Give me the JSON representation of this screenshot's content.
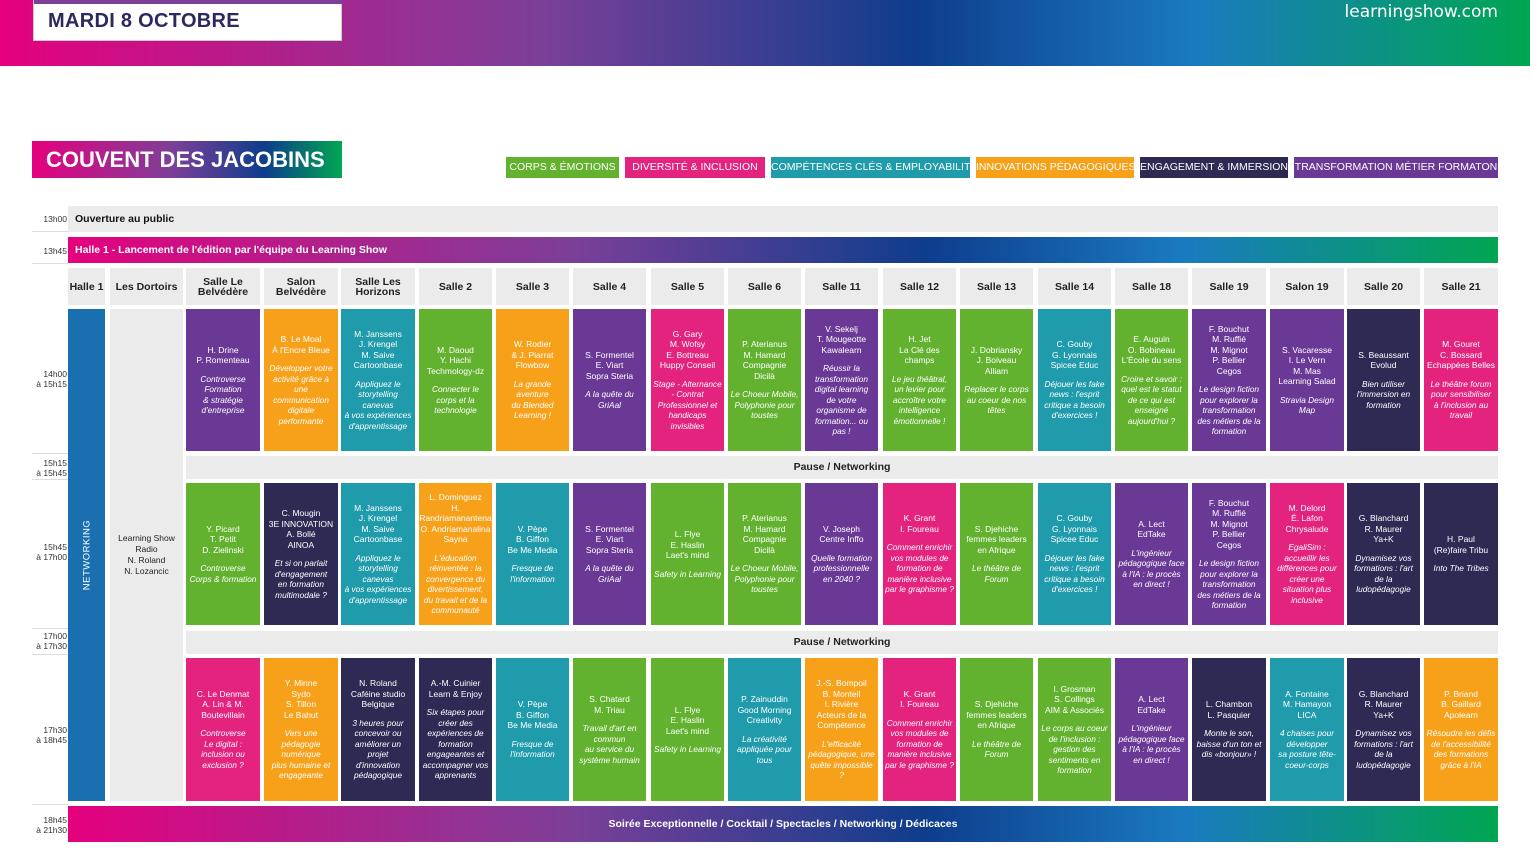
{
  "header": {
    "date": "MARDI 8 OCTOBRE",
    "site": "learningshow.com"
  },
  "venue": "COUVENT DES JACOBINS",
  "colors": {
    "corps": "#63b22f",
    "diversite": "#e4237f",
    "competences": "#1f9bab",
    "innovations": "#f7a11a",
    "engagement": "#2e2a54",
    "transformation": "#6a3996"
  },
  "legend": [
    {
      "label": "CORPS & ÉMOTIONS",
      "color": "#63b22f"
    },
    {
      "label": "DIVERSITÉ & INCLUSION",
      "color": "#e4237f"
    },
    {
      "label": "COMPÉTENCES CLÉS & EMPLOYABILITÉ",
      "color": "#1f9bab"
    },
    {
      "label": "INNOVATIONS PÉDAGOGIQUES",
      "color": "#f7a11a"
    },
    {
      "label": "ENGAGEMENT & IMMERSION",
      "color": "#2e2a54"
    },
    {
      "label": "TRANSFORMATION MÉTIER FORMATON",
      "color": "#6a3996"
    }
  ],
  "times": {
    "t1300": "13h00",
    "t1345": "13h45",
    "slot1": "14h00\nà 15h15",
    "pause1": "15h15\nà 15h45",
    "slot2": "15h45\nà 17h00",
    "pause2": "17h00\nà 17h30",
    "slot3": "17h30\nà 18h45",
    "evening": "18h45\nà 21h30"
  },
  "rows": {
    "opening": "Ouverture au public",
    "launch": "Halle 1 - Lancement de l'édition par l'équipe du Learning Show",
    "pause": "Pause / Networking",
    "evening": "Soirée Exceptionnelle / Cocktail / Spectacles / Networking / Dédicaces"
  },
  "rooms": [
    "Halle 1",
    "Les Dortoirs",
    "Salle Le Belvédère",
    "Salon Belvédère",
    "Salle Les Horizons",
    "Salle 2",
    "Salle 3",
    "Salle 4",
    "Salle 5",
    "Salle 6",
    "Salle 11",
    "Salle 12",
    "Salle 13",
    "Salle 14",
    "Salle 18",
    "Salle 19",
    "Salon 19",
    "Salle 20",
    "Salle 21"
  ],
  "networking": "NETWORKING",
  "dortoirs": "Learning Show\nRadio\nN. Roland\nN. Lozancic",
  "slot1": [
    {
      "sp": "H. Drine\nP. Romenteau",
      "t": "Controverse\nFormation\n& stratégie\nd'entreprise",
      "c": "transformation"
    },
    {
      "sp": "B. Le Moal\nÀ l'Encre Bleue",
      "t": "Développer votre\nactivité grâce à\nune\ncommunication\ndigitale\nperformante",
      "c": "innovations"
    },
    {
      "sp": "M. Janssens\nJ. Krengel\nM. Saive\nCartoonbase",
      "t": "Appliquez le\nstorytelling\ncanevas\nà vos expériences\nd'apprentissage",
      "c": "competences"
    },
    {
      "sp": "M. Daoud\nY. Hachi\nTechmology-dz",
      "t": "Connecter le\ncorps et la\ntechnologie",
      "c": "corps"
    },
    {
      "sp": "W. Rodier\n& J. Piarrat\nFlowbow",
      "t": "La grande\naventure\ndu Blended\nLearning !",
      "c": "innovations"
    },
    {
      "sp": "S. Formentel\nE. Viart\nSopra Steria",
      "t": "A la quête du\nGriAal",
      "c": "transformation"
    },
    {
      "sp": "G. Gary\nM. Wofsy\nE. Bottreau\nHuppy Conseil",
      "t": "Stage - Alternance\n- Contrat\nProfessionnel et\nhandicaps\ninvisibles",
      "c": "diversite"
    },
    {
      "sp": "P. Aterianus\nM. Hamard\nCompagnie\nDicilà",
      "t": "Le Choeur Mobile,\nPolyphonie pour\ntoustes",
      "c": "corps"
    },
    {
      "sp": "V. Sekelj\nT. Mougeotte\nKawalearn",
      "t": "Réussir la\ntransformation\ndigital learning\nde votre\norganisme de\nformation... ou\npas !",
      "c": "transformation"
    },
    {
      "sp": "H. Jet\nLa Clé des\nchamps",
      "t": "Le jeu théâtral,\nun levier pour\naccroître votre\nintelligence\némotionnelle !",
      "c": "corps"
    },
    {
      "sp": "J. Dobriansky\nJ. Boiveau\nAlliam",
      "t": "Replacer le corps\nau coeur de nos\ntêtes",
      "c": "corps"
    },
    {
      "sp": "C. Gouby\nG. Lyonnais\nSpicee Educ",
      "t": "Déjouer les fake\nnews : l'esprit\ncritique a besoin\nd'exercices !",
      "c": "competences"
    },
    {
      "sp": "E. Auguin\nO. Bobineau\nL'École du sens",
      "t": "Croire et savoir :\nquel est le statut\nde ce qui est\nenseigné\naujourd'hui ?",
      "c": "corps"
    },
    {
      "sp": "F. Bouchut\nM. Ruffié\nM. Mignot\nP. Bellier\nCegos",
      "t": "Le design fiction\npour explorer la\ntransformation\ndes métiers de la\nformation",
      "c": "transformation"
    },
    {
      "sp": "S. Vacaresse\nI. Le Vern\nM. Mas\nLearning Salad",
      "t": "Stravia Design\nMap",
      "c": "transformation"
    },
    {
      "sp": "S. Beaussant\nEvolud",
      "t": "Bien utiliser\nl'immersion en\nformation",
      "c": "engagement"
    },
    {
      "sp": "M. Gouret\nC. Bossard\nEchappées Belles",
      "t": "Le théâtre forum\npour sensibiliser\nà l'inclusion au\ntravail",
      "c": "diversite"
    }
  ],
  "slot2": [
    {
      "sp": "Y. Picard\nT. Petit\nD. Zielinski",
      "t": "Controverse\nCorps & formation",
      "c": "corps"
    },
    {
      "sp": "C. Mougin\n3E INNOVATION\nA. Bollé\nAINOA",
      "t": "Et si on parlait\nd'engagement\nen formation\nmultimodale ?",
      "c": "engagement"
    },
    {
      "sp": "M. Janssens\nJ. Krengel\nM. Saive\nCartoonbase",
      "t": "Appliquez le\nstorytelling\ncanevas\nà vos expériences\nd'apprentissage",
      "c": "competences"
    },
    {
      "sp": "L. Dominguez\nH.\nRandriamanantena\nO. Andriamanalina\nSayna",
      "t": "L'éducation\nréinventée : la\nconvergence du\ndivertissement,\ndu travail et de la\ncommunauté",
      "c": "innovations"
    },
    {
      "sp": "V. Pèpe\nB. Giffon\nBe Me Media",
      "t": "Fresque de\nl'information",
      "c": "competences"
    },
    {
      "sp": "S. Formentel\nE. Viart\nSopra Steria",
      "t": "A la quête du\nGriAal",
      "c": "transformation"
    },
    {
      "sp": "L. Flye\nE. Haslin\nLaet's mind",
      "t": "Safety in Learning",
      "c": "corps"
    },
    {
      "sp": "P. Aterianus\nM. Hamard\nCompagnie\nDicilà",
      "t": "Le Choeur Mobile,\nPolyphonie pour\ntoustes",
      "c": "corps"
    },
    {
      "sp": "V. Joseph\nCentre Inffo",
      "t": "Quelle formation\nprofessionnelle\nen 2040 ?",
      "c": "transformation"
    },
    {
      "sp": "K. Grant\nI. Foureau",
      "t": "Comment enrichir\nvos modules de\nformation de\nmanière inclusive\npar le graphisme ?",
      "c": "diversite"
    },
    {
      "sp": "S. Djehiche\nfemmes leaders\nen Afrique",
      "t": "Le théâtre de\nForum",
      "c": "corps"
    },
    {
      "sp": "C. Gouby\nG. Lyonnais\nSpicee Educ",
      "t": "Déjouer les fake\nnews : l'esprit\ncritique a besoin\nd'exercices !",
      "c": "competences"
    },
    {
      "sp": "A. Lect\nEdTake",
      "t": "L'ingénieur\npédagogique face\nà l'IA : le procès\nen direct !",
      "c": "transformation"
    },
    {
      "sp": "F. Bouchut\nM. Ruffié\nM. Mignot\nP. Bellier\nCegos",
      "t": "Le design fiction\npour explorer la\ntransformation\ndes métiers de la\nformation",
      "c": "transformation"
    },
    {
      "sp": "M. Delord\nÉ. Lafon\nChrysalude",
      "t": "EgaliSim :\naccueillir les\ndifférences pour\ncréer une\nsituation plus\ninclusive",
      "c": "diversite"
    },
    {
      "sp": "G. Blanchard\nR. Maurer\nYa+K",
      "t": "Dynamisez vos\nformations : l'art\nde la\nludopédagogie",
      "c": "engagement"
    },
    {
      "sp": "H. Paul\n(Re)faire Tribu",
      "t": "Into The Tribes",
      "c": "engagement"
    }
  ],
  "slot3": [
    {
      "sp": "C. Le Denmat\nA. Lin & M.\nBoutevillain",
      "t": "Controverse\nLe digital :\ninclusion ou\nexclusion ?",
      "c": "diversite"
    },
    {
      "sp": "Y. Minne\nSydo\nS. Tillon\nLe Bahut",
      "t": "Vers une\npédagogie\nnumérique\nplus humaine et\nengageante",
      "c": "innovations"
    },
    {
      "sp": "N. Roland\nCaféine studio\nBelgique",
      "t": "3 heures pour\nconcevoir ou\naméliorer un\nprojet\nd'innovation\npédagogique",
      "c": "engagement"
    },
    {
      "sp": "A.-M. Cuinier\nLearn & Enjoy",
      "t": "Six étapes pour\ncréer des\nexpériences de\nformation\nengageantes et\naccompagner vos\napprenants",
      "c": "engagement"
    },
    {
      "sp": "V. Pèpe\nB. Giffon\nBe Me Media",
      "t": "Fresque de\nl'information",
      "c": "competences"
    },
    {
      "sp": "S. Chatard\nM. Triau",
      "t": "Travail d'art en\ncommun\nau service du\nsystème humain",
      "c": "corps"
    },
    {
      "sp": "L. Flye\nE. Haslin\nLaet's mind",
      "t": "Safety in Learning",
      "c": "corps"
    },
    {
      "sp": "P. Zainuddin\nGood Morning\nCreativity",
      "t": "La créativité\nappliquée pour\ntous",
      "c": "competences"
    },
    {
      "sp": "J.-S. Bompoil\nB. Monteil\nI. Rivière\nActeurs de la\nCompétence",
      "t": "L'efficacité\npédagogique, une\nquête impossible ?",
      "c": "innovations"
    },
    {
      "sp": "K. Grant\nI. Foureau",
      "t": "Comment enrichir\nvos modules de\nformation de\nmanière inclusive\npar le graphisme ?",
      "c": "diversite"
    },
    {
      "sp": "S. Djehiche\nfemmes leaders\nen Afrique",
      "t": "Le théâtre de\nForum",
      "c": "corps"
    },
    {
      "sp": "I. Grosman\nS. Collings\nAIM & Associés",
      "t": "Le corps au coeur\nde l'inclusion :\ngestion des\nsentiments en\nformation",
      "c": "corps"
    },
    {
      "sp": "A. Lect\nEdTake",
      "t": "L'ingénieur\npédagogique face\nà l'IA : le procès\nen direct !",
      "c": "transformation"
    },
    {
      "sp": "L. Chambon\nL. Pasquier",
      "t": "Monte le son,\nbaisse d'un ton et\ndis «bonjour» !",
      "c": "engagement"
    },
    {
      "sp": "A. Fontaine\nM. Hamayon\nLICA",
      "t": "4 chaises pour\ndévelopper\nsa posture tête-\ncoeur-corps",
      "c": "competences"
    },
    {
      "sp": "G. Blanchard\nR. Maurer\nYa+K",
      "t": "Dynamisez vos\nformations : l'art\nde la\nludopédagogie",
      "c": "engagement"
    },
    {
      "sp": "P. Briand\nB. Gaillard\nApolearn",
      "t": "Résoudre les défis\nde l'accessibilité\ndes formations\ngrâce à l'IA",
      "c": "innovations"
    }
  ]
}
